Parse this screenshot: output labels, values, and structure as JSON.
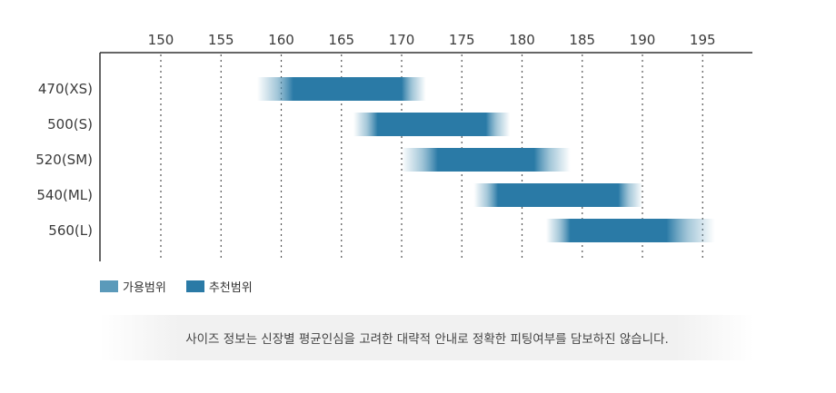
{
  "chart_data": {
    "type": "bar",
    "subtype": "horizontal-range",
    "x_ticks": [
      150,
      155,
      160,
      165,
      170,
      175,
      180,
      185,
      190,
      195
    ],
    "xlim": [
      148,
      198
    ],
    "x_axis_position": "top",
    "grid": "vertical dotted",
    "categories": [
      "470(XS)",
      "500(S)",
      "520(SM)",
      "540(ML)",
      "560(L)"
    ],
    "series": [
      {
        "name": "가용범위",
        "ranges": [
          [
            158,
            172
          ],
          [
            166,
            179
          ],
          [
            170,
            184
          ],
          [
            176,
            190
          ],
          [
            182,
            196
          ]
        ]
      },
      {
        "name": "추천범위",
        "ranges": [
          [
            161,
            170
          ],
          [
            168,
            177
          ],
          [
            173,
            181
          ],
          [
            178,
            188
          ],
          [
            184,
            192
          ]
        ]
      }
    ],
    "colors": {
      "available": "#5b9aba",
      "recommended": "#2a7aa6",
      "axis": "#333333",
      "grid": "#555555"
    },
    "legend_position": "bottom-left"
  },
  "legend": {
    "available_label": "가용범위",
    "recommended_label": "추천범위"
  },
  "notice": "사이즈 정보는 신장별 평균인심을 고려한 대략적 안내로 정확한 피팅여부를 담보하진 않습니다."
}
